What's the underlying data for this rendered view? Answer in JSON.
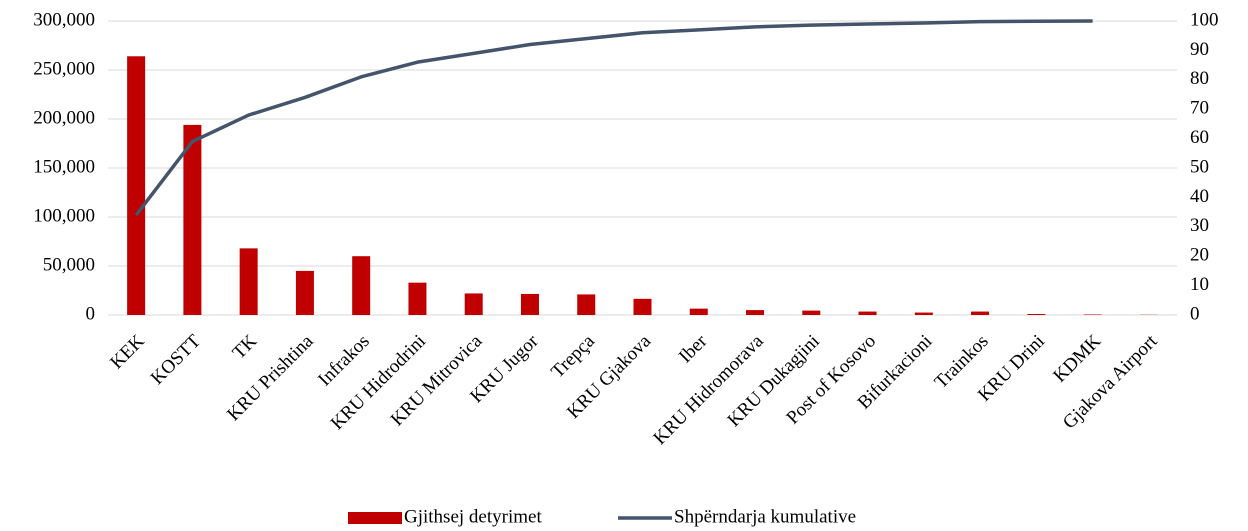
{
  "chart_data": {
    "type": "bar",
    "categories": [
      "KEK",
      "KOSTT",
      "TK",
      "KRU Prishtina",
      "Infrakos",
      "KRU Hidrodrini",
      "KRU Mitrovica",
      "KRU Jugor",
      "Trepça",
      "KRU Gjakova",
      "Iber",
      "KRU Hidromorava",
      "KRU Dukagjini",
      "Post of Kosovo",
      "Bifurkacioni",
      "Trainkos",
      "KRU Drini",
      "KDMK",
      "Gjakova Airport"
    ],
    "series": [
      {
        "name": "Gjithsej detyrimet",
        "type": "bar",
        "color": "#c00000",
        "values": [
          264000,
          194000,
          68000,
          45000,
          60000,
          33000,
          22000,
          21500,
          21000,
          16500,
          6500,
          5000,
          4500,
          3500,
          2500,
          3500,
          1000,
          500,
          200
        ]
      },
      {
        "name": "Shpërndarja kumulative",
        "type": "line",
        "axis": "y2",
        "color": "#44546a",
        "values": [
          34,
          59,
          68,
          74,
          81,
          86,
          89,
          92,
          94,
          96,
          97,
          98,
          98.6,
          99,
          99.3,
          99.8,
          99.9,
          100,
          null
        ]
      }
    ],
    "ylim": [
      0,
      300000
    ],
    "yticks": [
      {
        "value": 0,
        "label": "0"
      },
      {
        "value": 50000,
        "label": "50,000"
      },
      {
        "value": 100000,
        "label": "100,000"
      },
      {
        "value": 150000,
        "label": "150,000"
      },
      {
        "value": 200000,
        "label": "200,000"
      },
      {
        "value": 250000,
        "label": "250,000"
      },
      {
        "value": 300000,
        "label": "300,000"
      }
    ],
    "y2lim": [
      0,
      100
    ],
    "y2ticks": [
      0,
      10,
      20,
      30,
      40,
      50,
      60,
      70,
      80,
      90,
      100
    ],
    "grid": true,
    "legend": "bottom"
  }
}
